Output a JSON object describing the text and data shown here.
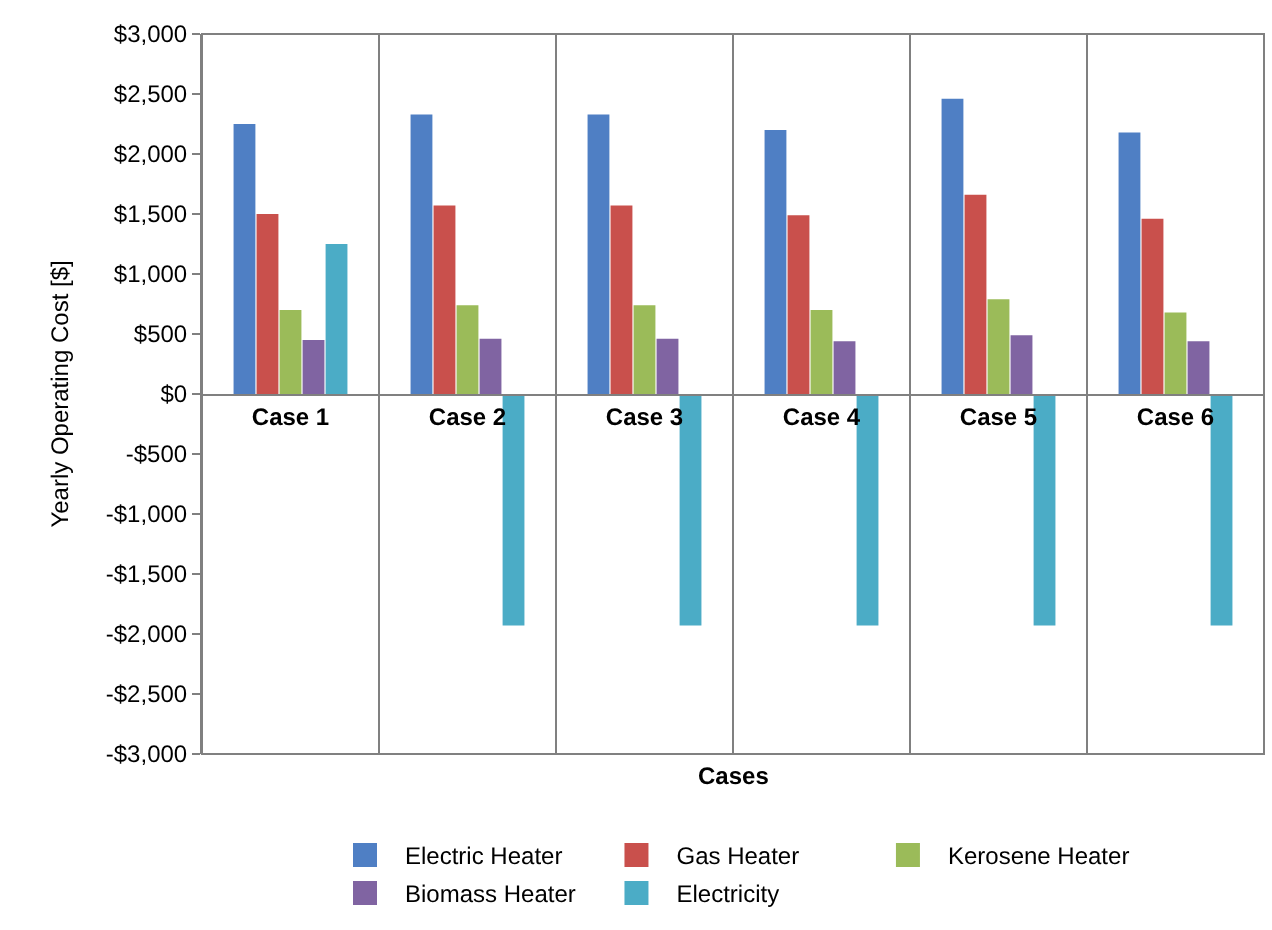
{
  "chart_data": {
    "type": "bar",
    "xlabel": "Cases",
    "ylabel": "Yearly Operating Cost [$]",
    "categories": [
      "Case 1",
      "Case 2",
      "Case 3",
      "Case 4",
      "Case 5",
      "Case 6"
    ],
    "series": [
      {
        "name": "Electric Heater",
        "color": "#4f7fc4",
        "values": [
          2250,
          2330,
          2330,
          2200,
          2460,
          2180
        ]
      },
      {
        "name": "Gas Heater",
        "color": "#c9504c",
        "values": [
          1500,
          1570,
          1570,
          1490,
          1660,
          1460
        ]
      },
      {
        "name": "Kerosene Heater",
        "color": "#9bbb59",
        "values": [
          700,
          740,
          740,
          700,
          790,
          680
        ]
      },
      {
        "name": "Biomass Heater",
        "color": "#8064a2",
        "values": [
          450,
          460,
          460,
          440,
          490,
          440
        ]
      },
      {
        "name": "Electricity",
        "color": "#4bacc6",
        "values": [
          1250,
          -1930,
          -1930,
          -1930,
          -1930,
          -1930
        ]
      }
    ],
    "ylim": [
      -3000,
      3000
    ],
    "yticks": [
      {
        "value": -3000,
        "label": "-$3,000"
      },
      {
        "value": -2500,
        "label": "-$2,500"
      },
      {
        "value": -2000,
        "label": "-$2,000"
      },
      {
        "value": -1500,
        "label": "-$1,500"
      },
      {
        "value": -1000,
        "label": "-$1,000"
      },
      {
        "value": -500,
        "label": "-$500"
      },
      {
        "value": 0,
        "label": "$0"
      },
      {
        "value": 500,
        "label": "$500"
      },
      {
        "value": 1000,
        "label": "$1,000"
      },
      {
        "value": 1500,
        "label": "$1,500"
      },
      {
        "value": 2000,
        "label": "$2,000"
      },
      {
        "value": 2500,
        "label": "$2,500"
      },
      {
        "value": 3000,
        "label": "$3,000"
      }
    ],
    "grid": "x",
    "legend": "bottom"
  }
}
